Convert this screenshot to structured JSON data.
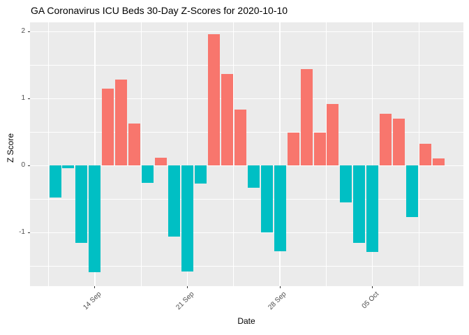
{
  "chart_data": {
    "type": "bar",
    "title": "GA Coronavirus ICU Beds 30-Day Z-Scores for 2020-10-10",
    "xlabel": "Date",
    "ylabel": "Z Score",
    "dates": [
      "2020-09-11",
      "2020-09-12",
      "2020-09-13",
      "2020-09-14",
      "2020-09-15",
      "2020-09-16",
      "2020-09-17",
      "2020-09-18",
      "2020-09-19",
      "2020-09-20",
      "2020-09-21",
      "2020-09-22",
      "2020-09-23",
      "2020-09-24",
      "2020-09-25",
      "2020-09-26",
      "2020-09-27",
      "2020-09-28",
      "2020-09-29",
      "2020-09-30",
      "2020-10-01",
      "2020-10-02",
      "2020-10-03",
      "2020-10-04",
      "2020-10-05",
      "2020-10-06",
      "2020-10-07",
      "2020-10-08",
      "2020-10-09",
      "2020-10-10"
    ],
    "values": [
      -0.48,
      -0.04,
      -1.15,
      -1.59,
      1.15,
      1.29,
      0.63,
      -0.26,
      0.12,
      -1.06,
      -1.58,
      -0.27,
      1.96,
      1.37,
      0.84,
      -0.33,
      -1.0,
      -1.28,
      0.49,
      1.44,
      0.49,
      0.92,
      -0.55,
      -1.15,
      -1.29,
      0.77,
      0.7,
      -0.77,
      0.33,
      0.11
    ],
    "x_tick_labels": [
      {
        "index": 3,
        "label": "14 Sep"
      },
      {
        "index": 10,
        "label": "21 Sep"
      },
      {
        "index": 17,
        "label": "28 Sep"
      },
      {
        "index": 24,
        "label": "05 Oct"
      }
    ],
    "x_minor_indices": [
      -0.5,
      6.5,
      13.5,
      20.5,
      27.5
    ],
    "y_ticks": [
      "2",
      "1",
      "0",
      "-1"
    ],
    "y_tick_values": [
      2,
      1,
      0,
      -1
    ],
    "y_minor_values": [
      1.5,
      0.5,
      -0.5,
      -1.5
    ],
    "ylim": [
      -1.8,
      2.14
    ],
    "grid": true,
    "legend": false,
    "colors": {
      "positive_bar": "#F8766D",
      "negative_bar": "#00BFC4",
      "panel_background": "#EBEBEB",
      "gridline": "#FFFFFF",
      "tick_label": "#4D4D4D",
      "title_text": "#000000",
      "tick_mark": "#333333"
    }
  }
}
